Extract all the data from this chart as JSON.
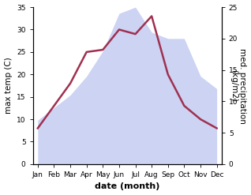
{
  "months": [
    "Jan",
    "Feb",
    "Mar",
    "Apr",
    "May",
    "Jun",
    "Jul",
    "Aug",
    "Sep",
    "Oct",
    "Nov",
    "Dec"
  ],
  "temperature": [
    8,
    13,
    18,
    25,
    25.5,
    30,
    29,
    33,
    20,
    13,
    10,
    8
  ],
  "precipitation": [
    7,
    9,
    11,
    14,
    18,
    24,
    25,
    21,
    20,
    20,
    14,
    12
  ],
  "temp_color": "#a03050",
  "precip_fill_color": "#bcc5f0",
  "precip_fill_alpha": 0.75,
  "ylabel_left": "max temp (C)",
  "ylabel_right": "med. precipitation\n(kg/m2)",
  "xlabel": "date (month)",
  "ylim_left": [
    0,
    35
  ],
  "ylim_right": [
    0,
    25
  ],
  "yticks_left": [
    0,
    5,
    10,
    15,
    20,
    25,
    30,
    35
  ],
  "yticks_right": [
    0,
    5,
    10,
    15,
    20,
    25
  ],
  "tick_fontsize": 6.5,
  "label_fontsize": 7.5,
  "xlabel_fontsize": 8,
  "linewidth": 1.8
}
